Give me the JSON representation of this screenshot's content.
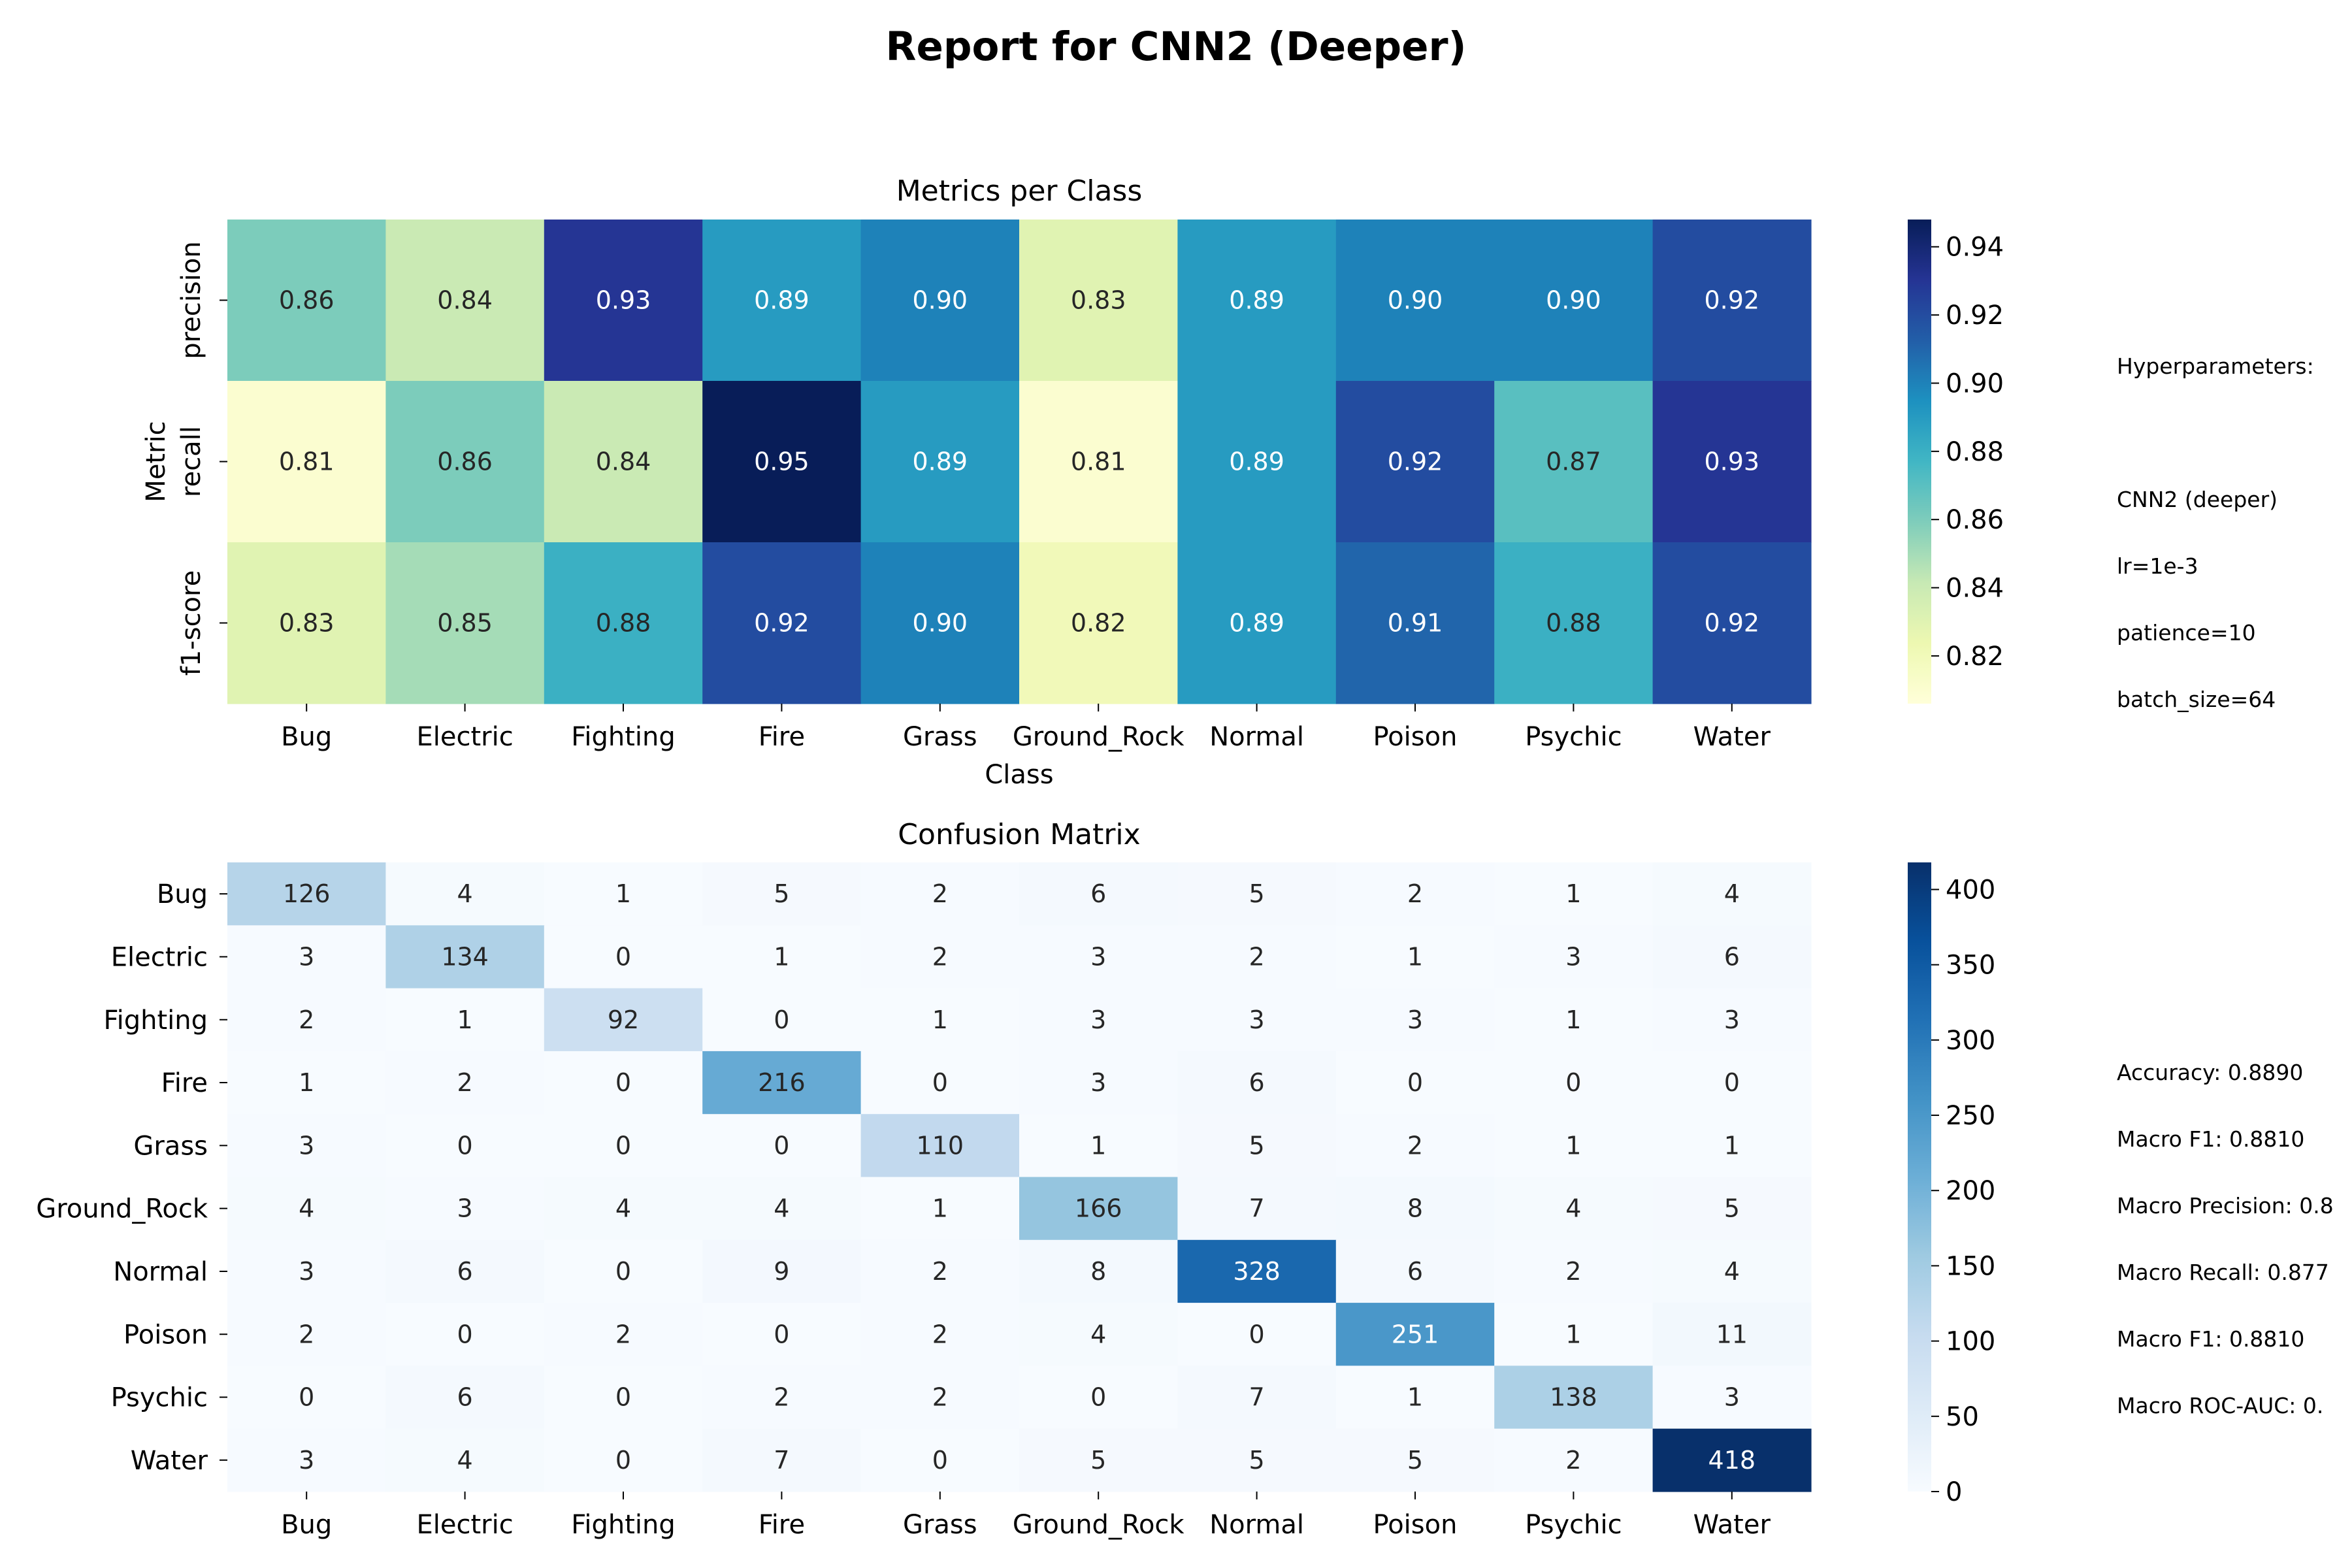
{
  "figure": {
    "title": "Report for CNN2 (Deeper)"
  },
  "hyperparameters": {
    "header": "Hyperparameters:",
    "lines": [
      "CNN2 (deeper)",
      "lr=1e-3",
      "patience=10",
      "batch_size=64"
    ]
  },
  "summary": {
    "lines": [
      "Accuracy: 0.8890",
      "Macro F1: 0.8810",
      "Macro Precision: 0.8",
      "Macro Recall: 0.877",
      "Macro F1: 0.8810",
      "Macro ROC-AUC: 0."
    ]
  },
  "chart_data": [
    {
      "type": "heatmap",
      "title": "Metrics per Class",
      "xlabel": "Class",
      "ylabel": "Metric",
      "x": [
        "Bug",
        "Electric",
        "Fighting",
        "Fire",
        "Grass",
        "Ground_Rock",
        "Normal",
        "Poison",
        "Psychic",
        "Water"
      ],
      "y": [
        "precision",
        "recall",
        "f1-score"
      ],
      "values": [
        [
          0.86,
          0.84,
          0.93,
          0.89,
          0.9,
          0.83,
          0.89,
          0.9,
          0.9,
          0.92
        ],
        [
          0.81,
          0.86,
          0.84,
          0.95,
          0.89,
          0.81,
          0.89,
          0.92,
          0.87,
          0.93
        ],
        [
          0.83,
          0.85,
          0.88,
          0.92,
          0.9,
          0.82,
          0.89,
          0.91,
          0.88,
          0.92
        ]
      ],
      "colormap": "YlGnBu",
      "vmin": 0.806,
      "vmax": 0.948,
      "colorbar_ticks": [
        0.82,
        0.84,
        0.86,
        0.88,
        0.9,
        0.92,
        0.94
      ]
    },
    {
      "type": "heatmap",
      "title": "Confusion Matrix",
      "xlabel": "",
      "ylabel": "",
      "x": [
        "Bug",
        "Electric",
        "Fighting",
        "Fire",
        "Grass",
        "Ground_Rock",
        "Normal",
        "Poison",
        "Psychic",
        "Water"
      ],
      "y": [
        "Bug",
        "Electric",
        "Fighting",
        "Fire",
        "Grass",
        "Ground_Rock",
        "Normal",
        "Poison",
        "Psychic",
        "Water"
      ],
      "values": [
        [
          126,
          4,
          1,
          5,
          2,
          6,
          5,
          2,
          1,
          4
        ],
        [
          3,
          134,
          0,
          1,
          2,
          3,
          2,
          1,
          3,
          6
        ],
        [
          2,
          1,
          92,
          0,
          1,
          3,
          3,
          3,
          1,
          3
        ],
        [
          1,
          2,
          0,
          216,
          0,
          3,
          6,
          0,
          0,
          0
        ],
        [
          3,
          0,
          0,
          0,
          110,
          1,
          5,
          2,
          1,
          1
        ],
        [
          4,
          3,
          4,
          4,
          1,
          166,
          7,
          8,
          4,
          5
        ],
        [
          3,
          6,
          0,
          9,
          2,
          8,
          328,
          6,
          2,
          4
        ],
        [
          2,
          0,
          2,
          0,
          2,
          4,
          0,
          251,
          1,
          11
        ],
        [
          0,
          6,
          0,
          2,
          2,
          0,
          7,
          1,
          138,
          3
        ],
        [
          3,
          4,
          0,
          7,
          0,
          5,
          5,
          5,
          2,
          418
        ]
      ],
      "colormap": "Blues",
      "vmin": 0,
      "vmax": 418,
      "colorbar_ticks": [
        0,
        50,
        100,
        150,
        200,
        250,
        300,
        350,
        400
      ]
    }
  ]
}
